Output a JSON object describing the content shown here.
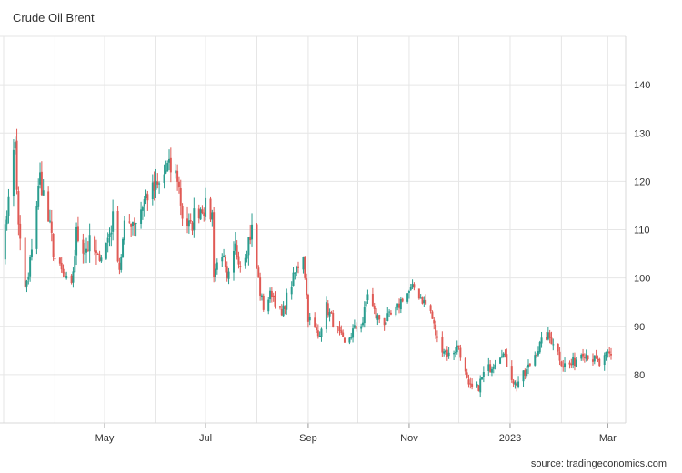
{
  "title": "Crude Oil Brent",
  "source": "source: tradingeconomics.com",
  "chart_data": {
    "type": "candlestick",
    "title": "Crude Oil Brent",
    "y_axis_ticks": [
      80,
      90,
      100,
      110,
      120,
      130,
      140
    ],
    "x_axis_ticks": [
      "May",
      "Jul",
      "Sep",
      "Nov",
      "2023",
      "Mar"
    ],
    "ylim": [
      70,
      150
    ],
    "x_range": [
      "2022-03-01",
      "2023-03-03"
    ],
    "grid": true,
    "colors": {
      "up": "#2a9d8f",
      "down": "#e05a55",
      "grid": "#e6e6e6",
      "axis": "#d8d8d8"
    },
    "series_points": [
      [
        "2022-03-01",
        105
      ],
      [
        "2022-03-04",
        118
      ],
      [
        "2022-03-08",
        128
      ],
      [
        "2022-03-10",
        110
      ],
      [
        "2022-03-14",
        98
      ],
      [
        "2022-03-16",
        100
      ],
      [
        "2022-03-18",
        107
      ],
      [
        "2022-03-23",
        121
      ],
      [
        "2022-03-29",
        110
      ],
      [
        "2022-04-01",
        104
      ],
      [
        "2022-04-07",
        100
      ],
      [
        "2022-04-11",
        98
      ],
      [
        "2022-04-14",
        109
      ],
      [
        "2022-04-19",
        106
      ],
      [
        "2022-04-22",
        107
      ],
      [
        "2022-04-27",
        104
      ],
      [
        "2022-05-02",
        107
      ],
      [
        "2022-05-06",
        112
      ],
      [
        "2022-05-10",
        102
      ],
      [
        "2022-05-13",
        110
      ],
      [
        "2022-05-17",
        112
      ],
      [
        "2022-05-20",
        112
      ],
      [
        "2022-05-26",
        117
      ],
      [
        "2022-06-03",
        119
      ],
      [
        "2022-06-08",
        123
      ],
      [
        "2022-06-14",
        121
      ],
      [
        "2022-06-17",
        113
      ],
      [
        "2022-06-22",
        110
      ],
      [
        "2022-06-24",
        113
      ],
      [
        "2022-06-29",
        115
      ],
      [
        "2022-07-05",
        113
      ],
      [
        "2022-07-06",
        101
      ],
      [
        "2022-07-11",
        106
      ],
      [
        "2022-07-14",
        99
      ],
      [
        "2022-07-19",
        106
      ],
      [
        "2022-07-22",
        103
      ],
      [
        "2022-07-29",
        110
      ],
      [
        "2022-08-03",
        97
      ],
      [
        "2022-08-05",
        94
      ],
      [
        "2022-08-10",
        97
      ],
      [
        "2022-08-16",
        92
      ],
      [
        "2022-08-19",
        96
      ],
      [
        "2022-08-24",
        101
      ],
      [
        "2022-08-29",
        105
      ],
      [
        "2022-09-01",
        92
      ],
      [
        "2022-09-07",
        88
      ],
      [
        "2022-09-12",
        94
      ],
      [
        "2022-09-16",
        91
      ],
      [
        "2022-09-23",
        86
      ],
      [
        "2022-09-28",
        89
      ],
      [
        "2022-10-04",
        91
      ],
      [
        "2022-10-07",
        97
      ],
      [
        "2022-10-12",
        92
      ],
      [
        "2022-10-17",
        91
      ],
      [
        "2022-10-24",
        93
      ],
      [
        "2022-10-28",
        96
      ],
      [
        "2022-11-04",
        98
      ],
      [
        "2022-11-08",
        96
      ],
      [
        "2022-11-14",
        93
      ],
      [
        "2022-11-18",
        87
      ],
      [
        "2022-11-25",
        84
      ],
      [
        "2022-12-01",
        86
      ],
      [
        "2022-12-07",
        77
      ],
      [
        "2022-12-12",
        77
      ],
      [
        "2022-12-16",
        80
      ],
      [
        "2022-12-21",
        82
      ],
      [
        "2022-12-27",
        85
      ],
      [
        "2023-01-04",
        78
      ],
      [
        "2023-01-10",
        80
      ],
      [
        "2023-01-17",
        85
      ],
      [
        "2023-01-23",
        88
      ],
      [
        "2023-01-27",
        87
      ],
      [
        "2023-02-02",
        82
      ],
      [
        "2023-02-07",
        82
      ],
      [
        "2023-02-14",
        85
      ],
      [
        "2023-02-21",
        83
      ],
      [
        "2023-02-24",
        82
      ],
      [
        "2023-03-01",
        84
      ],
      [
        "2023-03-03",
        84
      ]
    ]
  }
}
